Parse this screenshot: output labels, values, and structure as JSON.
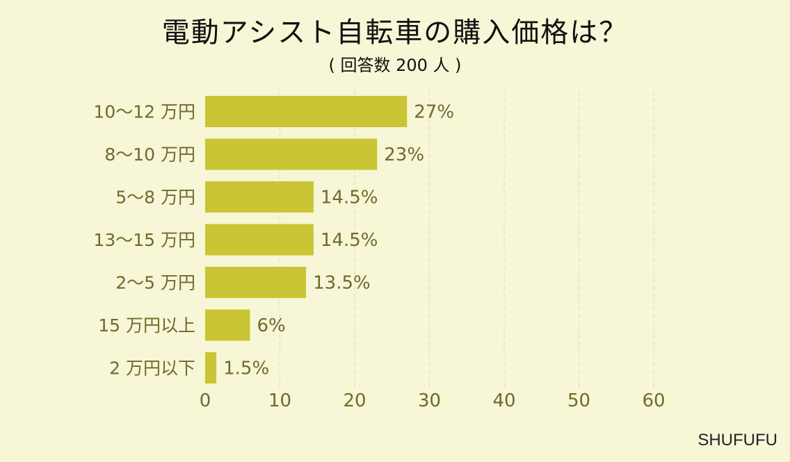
{
  "chart_data": {
    "type": "bar",
    "orientation": "horizontal",
    "title": "電動アシスト自転車の購入価格は？",
    "subtitle": "( 回答数 200 人 )",
    "categories": [
      "10〜12 万円",
      "8〜10 万円",
      "5〜8 万円",
      "13〜15 万円",
      "2〜5 万円",
      "15 万円以上",
      "2 万円以下"
    ],
    "values": [
      27,
      23,
      14.5,
      14.5,
      13.5,
      6,
      1.5
    ],
    "data_labels": [
      "27%",
      "23%",
      "14.5%",
      "14.5%",
      "13.5%",
      "6%",
      "1.5%"
    ],
    "xlabel": "",
    "ylabel": "",
    "xlim": [
      0,
      60
    ],
    "x_ticks": [
      "0",
      "10",
      "20",
      "30",
      "40",
      "50",
      "60"
    ],
    "grid": "vertical dashed",
    "colors": {
      "bar": "#c9c534",
      "text": "#6e6a2c",
      "grid": "#d9d8c0",
      "background": "#f7f6d6"
    }
  },
  "brand": "SHUFUFU"
}
